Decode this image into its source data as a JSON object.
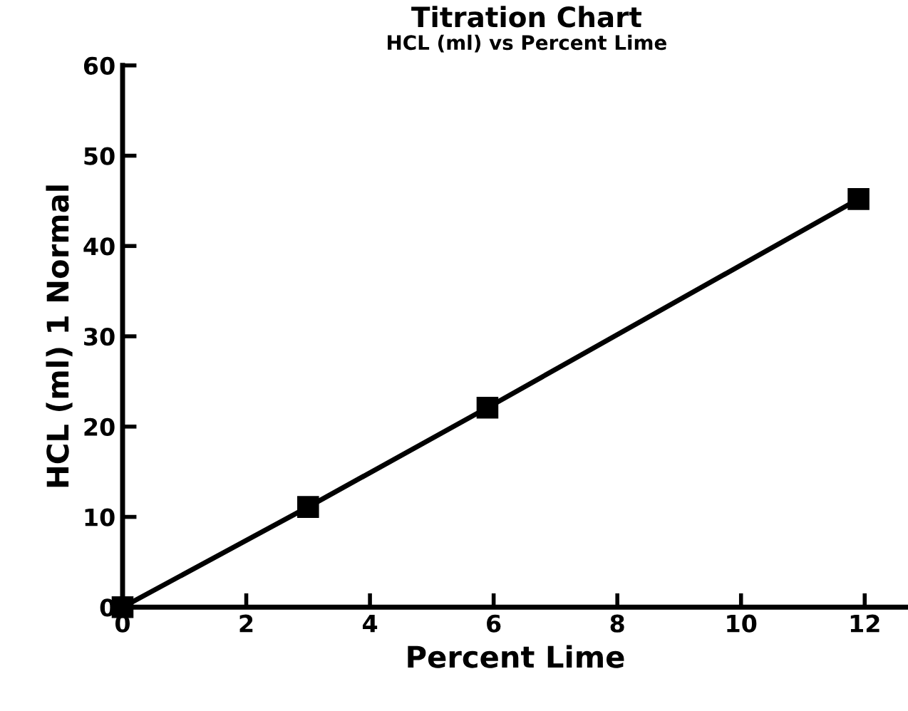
{
  "chart_data": {
    "type": "line",
    "title": "Titration Chart",
    "subtitle": "HCL (ml) vs Percent Lime",
    "xlabel": "Percent Lime",
    "ylabel": "HCL (ml) 1 Normal",
    "x": [
      0,
      3,
      5.9,
      11.9
    ],
    "series": [
      {
        "color": "#000000",
        "values": [
          0,
          11.1,
          22.1,
          45.2
        ]
      }
    ],
    "xlim": [
      0,
      12.7
    ],
    "xticks": [
      0,
      2,
      4,
      6,
      8,
      10,
      12
    ],
    "ylim": [
      0,
      60
    ],
    "yticks": [
      0,
      10,
      20,
      30,
      40,
      50,
      60
    ],
    "marker": "square",
    "line_style": "solid",
    "grid": false,
    "legend": false
  }
}
